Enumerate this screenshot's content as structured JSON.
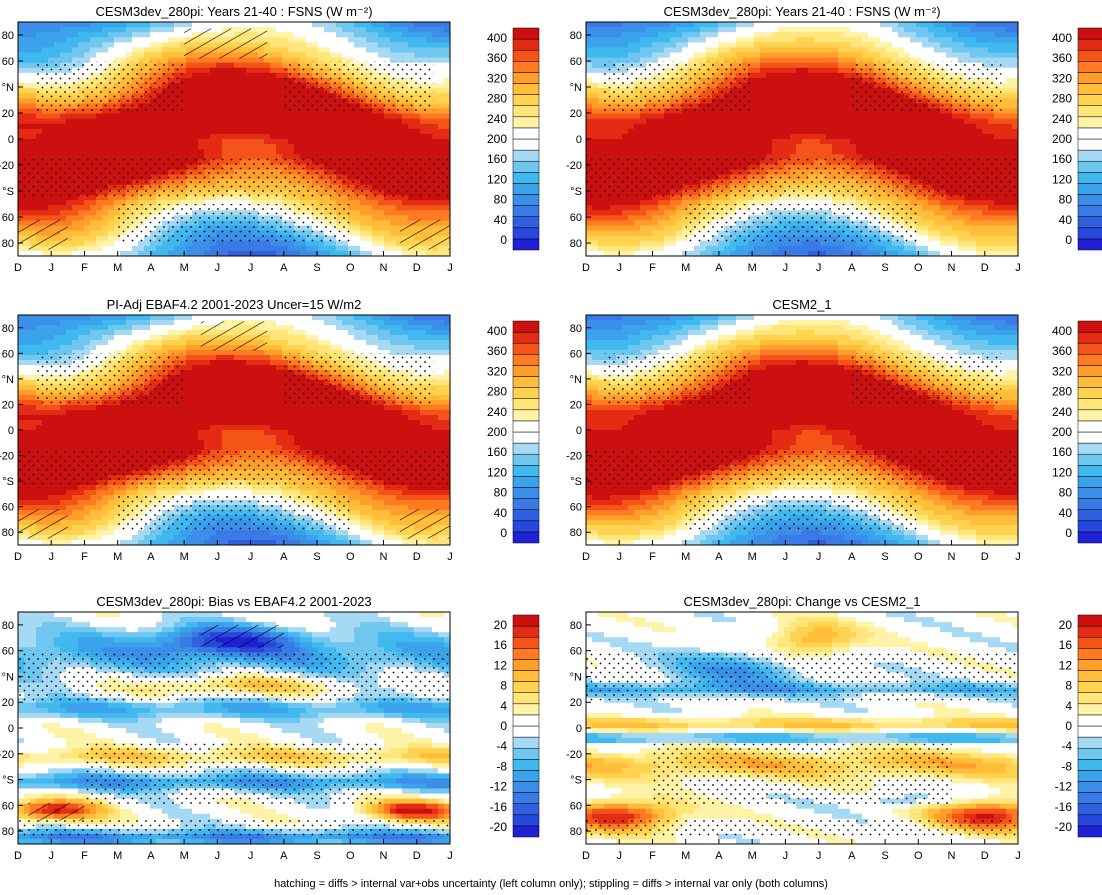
{
  "footnote": "hatching = diffs > internal var+obs uncertainty (left column only); stippling = diffs > internal var only (both columns)",
  "colors": {
    "abs_palette": [
      "#1f1fd6",
      "#2748de",
      "#3060e0",
      "#3a7ae6",
      "#3c8fe8",
      "#3aa3ec",
      "#40b8f0",
      "#6fc6ef",
      "#a6d9f4",
      "#ffffff",
      "#ffffff",
      "#fff3a8",
      "#ffe57a",
      "#ffd24f",
      "#ffbd3a",
      "#ff9e2a",
      "#ff7a20",
      "#f55418",
      "#e42c14",
      "#cc1010"
    ],
    "diff_palette": [
      "#1f1fd6",
      "#2748de",
      "#3060e0",
      "#3a7ae6",
      "#3c8fe8",
      "#3aa3ec",
      "#40b8f0",
      "#6fc6ef",
      "#a6d9f4",
      "#ffffff",
      "#ffffff",
      "#fff3a8",
      "#ffe57a",
      "#ffd24f",
      "#ffbd3a",
      "#ff9e2a",
      "#ff7a20",
      "#f55418",
      "#e42c14",
      "#cc1010"
    ]
  },
  "chart_data": [
    {
      "type": "heatmap",
      "title": "CESM3dev_280pi: Years 21-40 : FSNS (W m⁻²)",
      "x_ticks": [
        "D",
        "J",
        "F",
        "M",
        "A",
        "M",
        "J",
        "J",
        "A",
        "S",
        "O",
        "N",
        "D",
        "J"
      ],
      "y_ticks": [
        "80",
        "60",
        "°N",
        "20",
        "0",
        "-20",
        "°S",
        "60",
        "80"
      ],
      "y_range": [
        -90,
        90
      ],
      "colorbar_labels": [
        "400",
        "360",
        "320",
        "280",
        "240",
        "200",
        "160",
        "120",
        "80",
        "40",
        "0"
      ],
      "colorbar_range": [
        -20,
        420
      ],
      "field": "absolute",
      "hatch_regions": [
        [
          5.0,
          7.5,
          62,
          85
        ],
        [
          0,
          1.5,
          -85,
          -62
        ],
        [
          11.5,
          13,
          -85,
          -62
        ]
      ],
      "stippling": true
    },
    {
      "type": "heatmap",
      "title": "CESM3dev_280pi: Years 21-40 : FSNS (W m⁻²)",
      "x_ticks": [
        "D",
        "J",
        "F",
        "M",
        "A",
        "M",
        "J",
        "J",
        "A",
        "S",
        "O",
        "N",
        "D",
        "J"
      ],
      "y_ticks": [
        "80",
        "60",
        "°N",
        "20",
        "0",
        "-20",
        "°S",
        "60",
        "80"
      ],
      "y_range": [
        -90,
        90
      ],
      "colorbar_labels": [
        "400",
        "360",
        "320",
        "280",
        "240",
        "200",
        "160",
        "120",
        "80",
        "40",
        "0"
      ],
      "colorbar_range": [
        -20,
        420
      ],
      "field": "absolute",
      "hatch_regions": [],
      "stippling": true
    },
    {
      "type": "heatmap",
      "title": "PI-Adj EBAF4.2 2001-2023 Uncer=15 W/m2",
      "x_ticks": [
        "D",
        "J",
        "F",
        "M",
        "A",
        "M",
        "J",
        "J",
        "A",
        "S",
        "O",
        "N",
        "D",
        "J"
      ],
      "y_ticks": [
        "80",
        "60",
        "°N",
        "20",
        "0",
        "-20",
        "°S",
        "60",
        "80"
      ],
      "y_range": [
        -90,
        90
      ],
      "colorbar_labels": [
        "400",
        "360",
        "320",
        "280",
        "240",
        "200",
        "160",
        "120",
        "80",
        "40",
        "0"
      ],
      "colorbar_range": [
        -20,
        420
      ],
      "field": "absolute",
      "hatch_regions": [
        [
          5.5,
          7.5,
          62,
          85
        ],
        [
          0,
          1.5,
          -85,
          -62
        ],
        [
          11.5,
          13,
          -85,
          -62
        ]
      ],
      "stippling": true
    },
    {
      "type": "heatmap",
      "title": "CESM2_1",
      "x_ticks": [
        "D",
        "J",
        "F",
        "M",
        "A",
        "M",
        "J",
        "J",
        "A",
        "S",
        "O",
        "N",
        "D",
        "J"
      ],
      "y_ticks": [
        "80",
        "60",
        "°N",
        "20",
        "0",
        "-20",
        "°S",
        "60",
        "80"
      ],
      "y_range": [
        -90,
        90
      ],
      "colorbar_labels": [
        "400",
        "360",
        "320",
        "280",
        "240",
        "200",
        "160",
        "120",
        "80",
        "40",
        "0"
      ],
      "colorbar_range": [
        -20,
        420
      ],
      "field": "absolute",
      "hatch_regions": [],
      "stippling": true
    },
    {
      "type": "heatmap",
      "title": "CESM3dev_280pi: Bias vs EBAF4.2 2001-2023",
      "x_ticks": [
        "D",
        "J",
        "F",
        "M",
        "A",
        "M",
        "J",
        "J",
        "A",
        "S",
        "O",
        "N",
        "D",
        "J"
      ],
      "y_ticks": [
        "80",
        "60",
        "°N",
        "20",
        "0",
        "-20",
        "°S",
        "60",
        "80"
      ],
      "y_range": [
        -90,
        90
      ],
      "colorbar_labels": [
        "20",
        "16",
        "12",
        "8",
        "4",
        "0",
        "-4",
        "-8",
        "-12",
        "-16",
        "-20"
      ],
      "colorbar_range": [
        -22,
        22
      ],
      "field": "bias",
      "hatch_regions": [
        [
          5.5,
          8.0,
          62,
          80
        ],
        [
          0.3,
          2.0,
          -72,
          -58
        ]
      ],
      "stippling": true
    },
    {
      "type": "heatmap",
      "title": "CESM3dev_280pi: Change vs CESM2_1",
      "x_ticks": [
        "D",
        "J",
        "F",
        "M",
        "A",
        "M",
        "J",
        "J",
        "A",
        "S",
        "O",
        "N",
        "D",
        "J"
      ],
      "y_ticks": [
        "80",
        "60",
        "°N",
        "20",
        "0",
        "-20",
        "°S",
        "60",
        "80"
      ],
      "y_range": [
        -90,
        90
      ],
      "colorbar_labels": [
        "20",
        "16",
        "12",
        "8",
        "4",
        "0",
        "-4",
        "-8",
        "-12",
        "-16",
        "-20"
      ],
      "colorbar_range": [
        -22,
        22
      ],
      "field": "change",
      "hatch_regions": [],
      "stippling": true
    }
  ]
}
